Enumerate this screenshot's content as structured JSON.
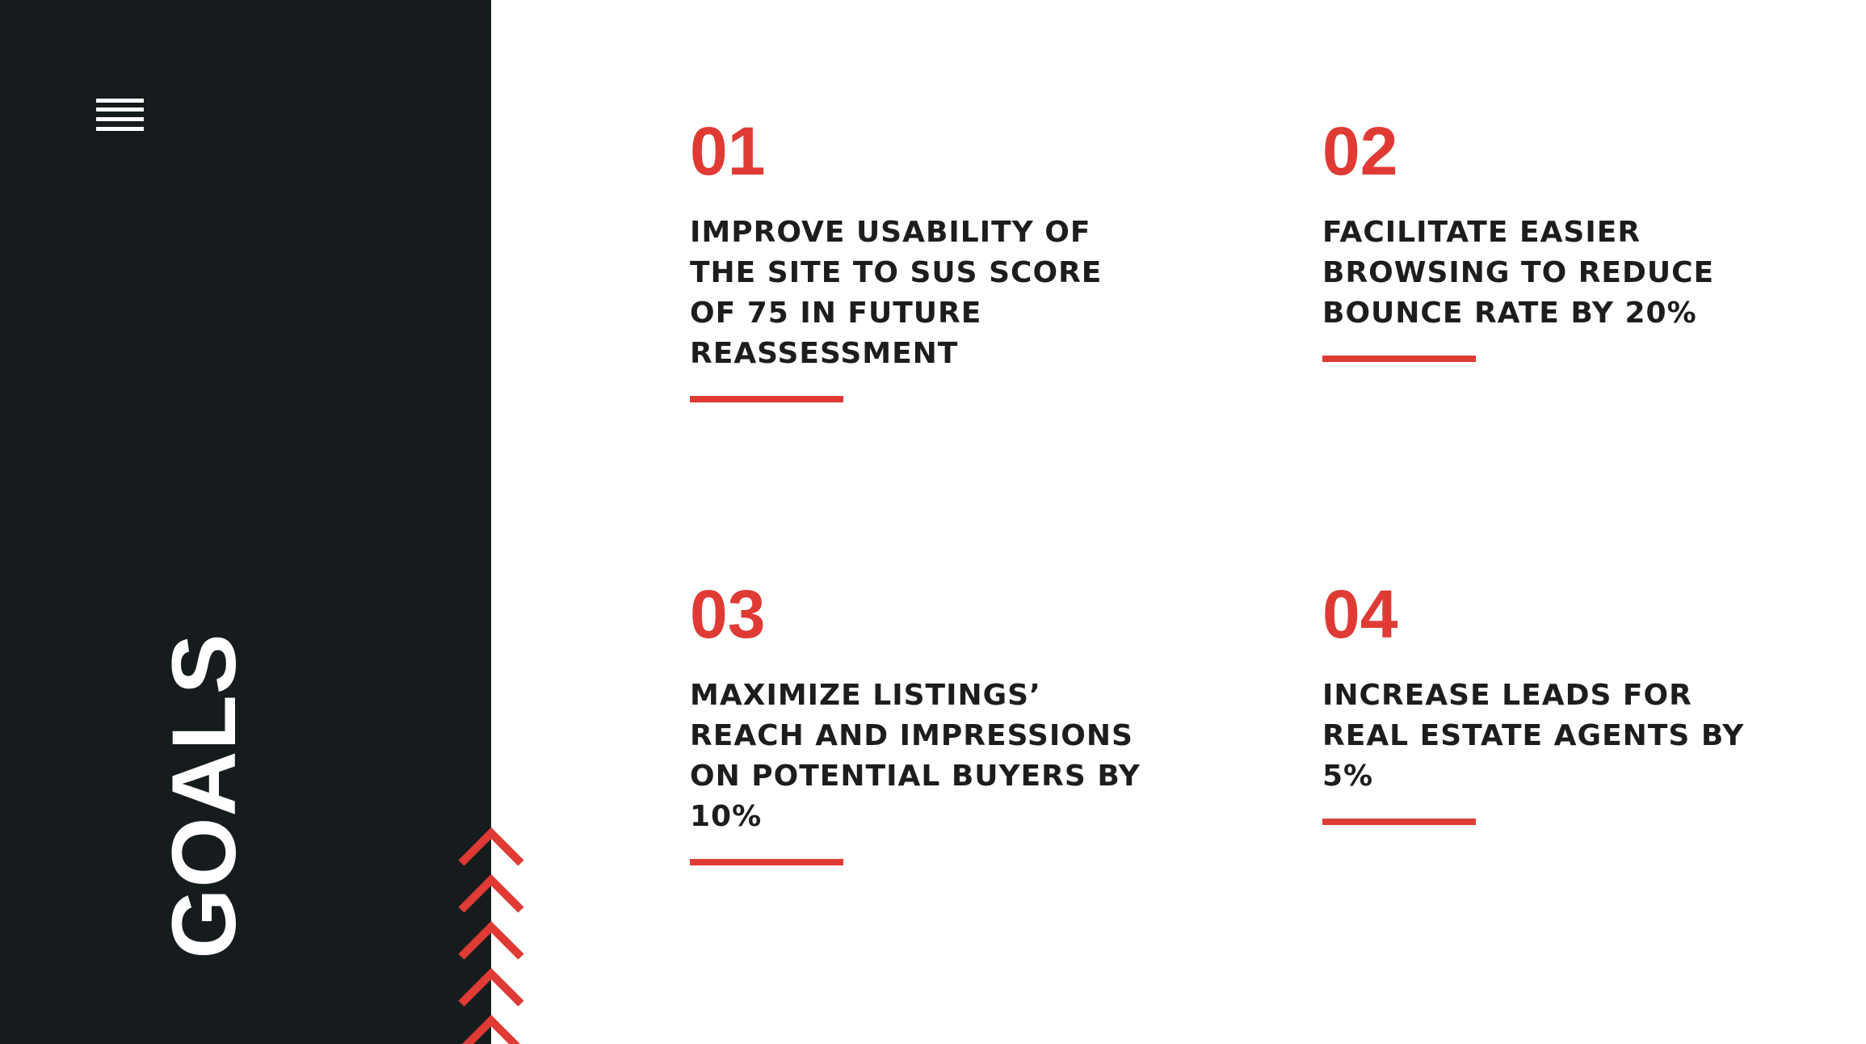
{
  "sidebar": {
    "title": "GOALS",
    "menu_icon": "hamburger-menu-icon",
    "decoration_icon": "chevron-up-icon"
  },
  "colors": {
    "sidebar_bg": "#161c1e",
    "accent": "#e03a35",
    "text": "#1b1d1f"
  },
  "goals": [
    {
      "number": "01",
      "text": "IMPROVE USABILITY OF THE SITE TO SUS SCORE OF 75 IN FUTURE REASSESSMENT"
    },
    {
      "number": "02",
      "text": "FACILITATE EASIER BROWSING TO REDUCE BOUNCE RATE BY 20%"
    },
    {
      "number": "03",
      "text": "MAXIMIZE LISTINGS’ REACH AND IMPRESSIONS ON POTENTIAL BUYERS BY 10%"
    },
    {
      "number": "04",
      "text": "INCREASE LEADS FOR REAL ESTATE AGENTS BY 5%"
    }
  ]
}
